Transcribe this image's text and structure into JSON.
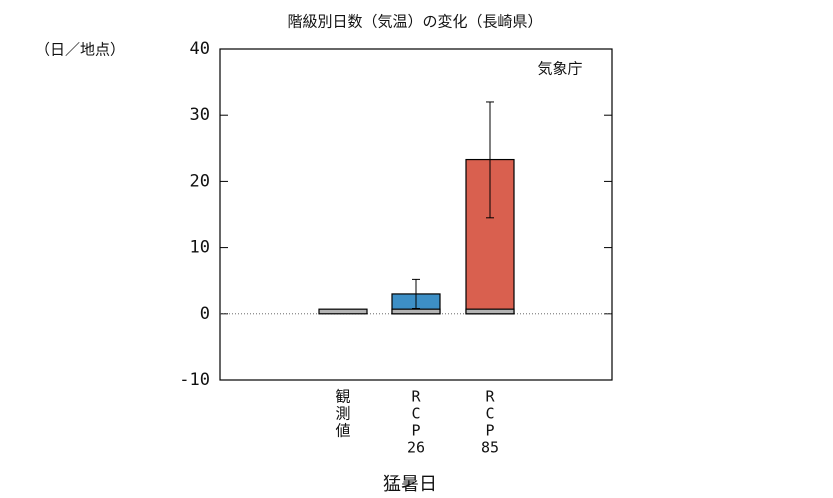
{
  "chart_data": {
    "type": "bar",
    "title": "階級別日数（気温）の変化（長崎県）",
    "y_unit": "（日／地点）",
    "annotation": "気象庁",
    "x_label": "猛暑日",
    "categories": [
      [
        "観",
        "測",
        "値"
      ],
      [
        "R",
        "C",
        "P",
        "26"
      ],
      [
        "R",
        "C",
        "P",
        "85"
      ]
    ],
    "values": [
      0.7,
      3.0,
      23.3
    ],
    "colors": [
      "#b4b4b4",
      "#3d8fc6",
      "#d9604f"
    ],
    "baseline_color": "#b4b4b4",
    "error_low": [
      null,
      0.8,
      14.5
    ],
    "error_high": [
      null,
      5.2,
      32.0
    ],
    "ylim": [
      -10,
      40
    ],
    "yticks": [
      -10,
      0,
      10,
      20,
      30,
      40
    ]
  }
}
